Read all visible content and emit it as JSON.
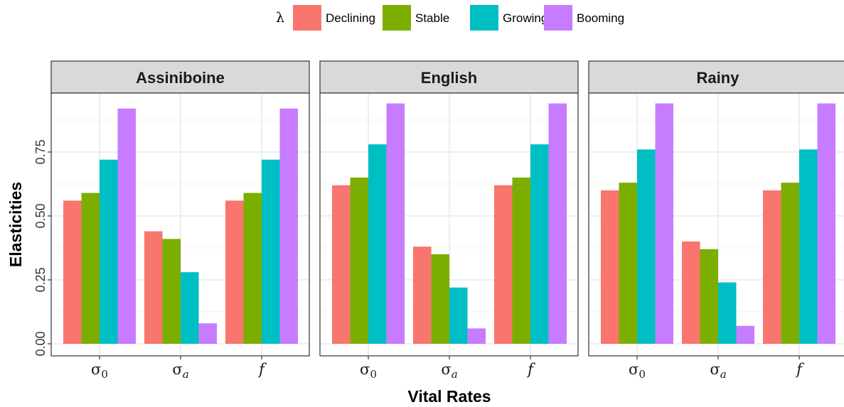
{
  "chart_data": {
    "type": "bar",
    "legend": {
      "title": "λ",
      "position": "top",
      "items": [
        {
          "name": "Declining",
          "color": "#F8766D"
        },
        {
          "name": "Stable",
          "color": "#7CAE00"
        },
        {
          "name": "Growing",
          "color": "#00BFC4"
        },
        {
          "name": "Booming",
          "color": "#C77CFF"
        }
      ]
    },
    "xlabel": "Vital Rates",
    "ylabel": "Elasticities",
    "ylim": [
      0,
      0.95
    ],
    "yticks": [
      "0.00",
      "0.25",
      "0.50",
      "0.75"
    ],
    "grid": true,
    "categories": [
      {
        "symbol": "σ",
        "sub": "0",
        "italic": false
      },
      {
        "symbol": "σ",
        "sub": "a",
        "italic": false
      },
      {
        "symbol": "f",
        "sub": "",
        "italic": true
      }
    ],
    "panels": [
      {
        "title": "Assiniboine",
        "series": [
          {
            "name": "Declining",
            "values": [
              0.56,
              0.44,
              0.56
            ]
          },
          {
            "name": "Stable",
            "values": [
              0.59,
              0.41,
              0.59
            ]
          },
          {
            "name": "Growing",
            "values": [
              0.72,
              0.28,
              0.72
            ]
          },
          {
            "name": "Booming",
            "values": [
              0.92,
              0.08,
              0.92
            ]
          }
        ]
      },
      {
        "title": "English",
        "series": [
          {
            "name": "Declining",
            "values": [
              0.62,
              0.38,
              0.62
            ]
          },
          {
            "name": "Stable",
            "values": [
              0.65,
              0.35,
              0.65
            ]
          },
          {
            "name": "Growing",
            "values": [
              0.78,
              0.22,
              0.78
            ]
          },
          {
            "name": "Booming",
            "values": [
              0.94,
              0.06,
              0.94
            ]
          }
        ]
      },
      {
        "title": "Rainy",
        "series": [
          {
            "name": "Declining",
            "values": [
              0.6,
              0.4,
              0.6
            ]
          },
          {
            "name": "Stable",
            "values": [
              0.63,
              0.37,
              0.63
            ]
          },
          {
            "name": "Growing",
            "values": [
              0.76,
              0.24,
              0.76
            ]
          },
          {
            "name": "Booming",
            "values": [
              0.94,
              0.07,
              0.94
            ]
          }
        ]
      }
    ]
  }
}
